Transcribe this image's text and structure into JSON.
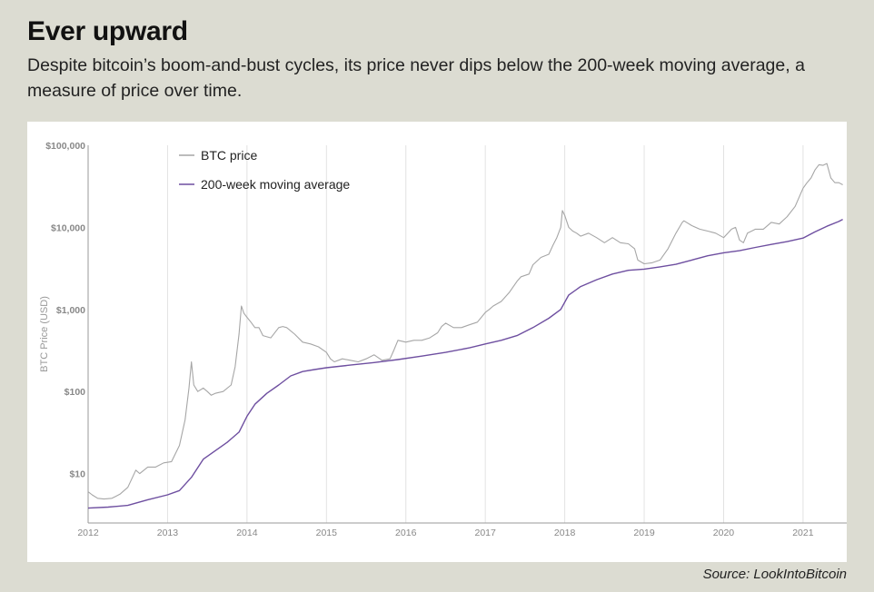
{
  "header": {
    "title": "Ever upward",
    "subtitle": "Despite bitcoin’s boom-and-bust cycles, its price never dips below the 200-week moving average, a measure of price over time."
  },
  "footer": {
    "source": "Source: LookIntoBitcoin"
  },
  "colors": {
    "price": "#a6a6a6",
    "ma": "#6e4fa0",
    "background": "#dcdcd2",
    "panel": "#ffffff",
    "gridline": "#e2e2e2"
  },
  "chart_data": {
    "type": "line",
    "title": "",
    "xlabel": "",
    "ylabel": "BTC Price (USD)",
    "yscale": "log",
    "ylim": [
      2.5,
      100000
    ],
    "xlim": [
      2012.0,
      2021.55
    ],
    "xticks": [
      2012,
      2013,
      2014,
      2015,
      2016,
      2017,
      2018,
      2019,
      2020,
      2021
    ],
    "xtick_labels": [
      "2012",
      "2013",
      "2014",
      "2015",
      "2016",
      "2017",
      "2018",
      "2019",
      "2020",
      "2021"
    ],
    "yticks": [
      10,
      100,
      1000,
      10000,
      100000
    ],
    "ytick_labels": [
      "$10",
      "$100",
      "$1,000",
      "$10,000",
      "$100,000"
    ],
    "grid": "vertical",
    "legend": {
      "position": "top-left",
      "entries": [
        "BTC price",
        "200-week moving average"
      ]
    },
    "series": [
      {
        "name": "BTC price",
        "x": [
          2012.0,
          2012.05,
          2012.12,
          2012.2,
          2012.3,
          2012.4,
          2012.5,
          2012.6,
          2012.65,
          2012.75,
          2012.85,
          2012.95,
          2013.05,
          2013.15,
          2013.22,
          2013.27,
          2013.3,
          2013.33,
          2013.38,
          2013.45,
          2013.5,
          2013.55,
          2013.6,
          2013.7,
          2013.8,
          2013.85,
          2013.9,
          2013.93,
          2013.96,
          2014.0,
          2014.05,
          2014.1,
          2014.15,
          2014.2,
          2014.3,
          2014.4,
          2014.45,
          2014.5,
          2014.6,
          2014.7,
          2014.8,
          2014.9,
          2015.0,
          2015.05,
          2015.1,
          2015.2,
          2015.3,
          2015.4,
          2015.5,
          2015.6,
          2015.7,
          2015.8,
          2015.85,
          2015.9,
          2016.0,
          2016.1,
          2016.2,
          2016.3,
          2016.4,
          2016.45,
          2016.5,
          2016.6,
          2016.7,
          2016.8,
          2016.9,
          2017.0,
          2017.05,
          2017.1,
          2017.2,
          2017.3,
          2017.4,
          2017.45,
          2017.5,
          2017.55,
          2017.6,
          2017.7,
          2017.8,
          2017.85,
          2017.9,
          2017.95,
          2017.97,
          2018.0,
          2018.05,
          2018.1,
          2018.15,
          2018.2,
          2018.3,
          2018.4,
          2018.5,
          2018.6,
          2018.7,
          2018.8,
          2018.88,
          2018.92,
          2019.0,
          2019.1,
          2019.2,
          2019.3,
          2019.4,
          2019.48,
          2019.5,
          2019.6,
          2019.7,
          2019.8,
          2019.9,
          2020.0,
          2020.1,
          2020.15,
          2020.2,
          2020.25,
          2020.3,
          2020.4,
          2020.5,
          2020.6,
          2020.7,
          2020.8,
          2020.9,
          2021.0,
          2021.05,
          2021.1,
          2021.15,
          2021.2,
          2021.25,
          2021.3,
          2021.35,
          2021.4,
          2021.45,
          2021.5
        ],
        "y": [
          6.0,
          5.5,
          5.0,
          4.9,
          5.0,
          5.6,
          6.8,
          11,
          10,
          12,
          12,
          13.5,
          14,
          22,
          45,
          110,
          230,
          120,
          100,
          110,
          100,
          90,
          95,
          100,
          120,
          200,
          500,
          1100,
          900,
          800,
          700,
          600,
          600,
          480,
          450,
          600,
          620,
          600,
          500,
          400,
          380,
          350,
          300,
          250,
          230,
          250,
          240,
          230,
          250,
          280,
          240,
          250,
          320,
          420,
          400,
          420,
          420,
          450,
          520,
          620,
          680,
          600,
          600,
          650,
          700,
          920,
          1000,
          1100,
          1250,
          1600,
          2200,
          2500,
          2600,
          2700,
          3500,
          4300,
          4700,
          6000,
          7500,
          10000,
          16000,
          14000,
          10000,
          9000,
          8500,
          7800,
          8500,
          7500,
          6500,
          7500,
          6500,
          6300,
          5500,
          4000,
          3600,
          3700,
          4000,
          5500,
          8500,
          11500,
          12000,
          10500,
          9500,
          9000,
          8500,
          7500,
          9500,
          10000,
          7000,
          6500,
          8500,
          9500,
          9500,
          11500,
          11000,
          13500,
          18000,
          30000,
          35000,
          40000,
          50000,
          58000,
          57000,
          60000,
          40000,
          35000,
          35000,
          33000
        ]
      },
      {
        "name": "200-week moving average",
        "x": [
          2012.0,
          2012.25,
          2012.5,
          2012.75,
          2013.0,
          2013.15,
          2013.3,
          2013.45,
          2013.6,
          2013.75,
          2013.9,
          2014.0,
          2014.1,
          2014.25,
          2014.4,
          2014.55,
          2014.7,
          2014.85,
          2015.0,
          2015.3,
          2015.6,
          2015.9,
          2016.2,
          2016.5,
          2016.8,
          2017.0,
          2017.2,
          2017.4,
          2017.6,
          2017.8,
          2017.95,
          2018.05,
          2018.2,
          2018.4,
          2018.6,
          2018.8,
          2019.0,
          2019.2,
          2019.4,
          2019.6,
          2019.8,
          2020.0,
          2020.2,
          2020.4,
          2020.6,
          2020.8,
          2021.0,
          2021.15,
          2021.3,
          2021.45,
          2021.5
        ],
        "y": [
          3.8,
          3.9,
          4.1,
          4.8,
          5.5,
          6.2,
          9,
          15,
          19,
          24,
          32,
          50,
          70,
          95,
          120,
          155,
          175,
          185,
          195,
          210,
          225,
          245,
          270,
          300,
          340,
          380,
          420,
          480,
          600,
          780,
          1000,
          1500,
          1900,
          2300,
          2700,
          3000,
          3100,
          3300,
          3550,
          4000,
          4500,
          4900,
          5200,
          5700,
          6200,
          6700,
          7400,
          8800,
          10300,
          11800,
          12500
        ]
      }
    ]
  }
}
